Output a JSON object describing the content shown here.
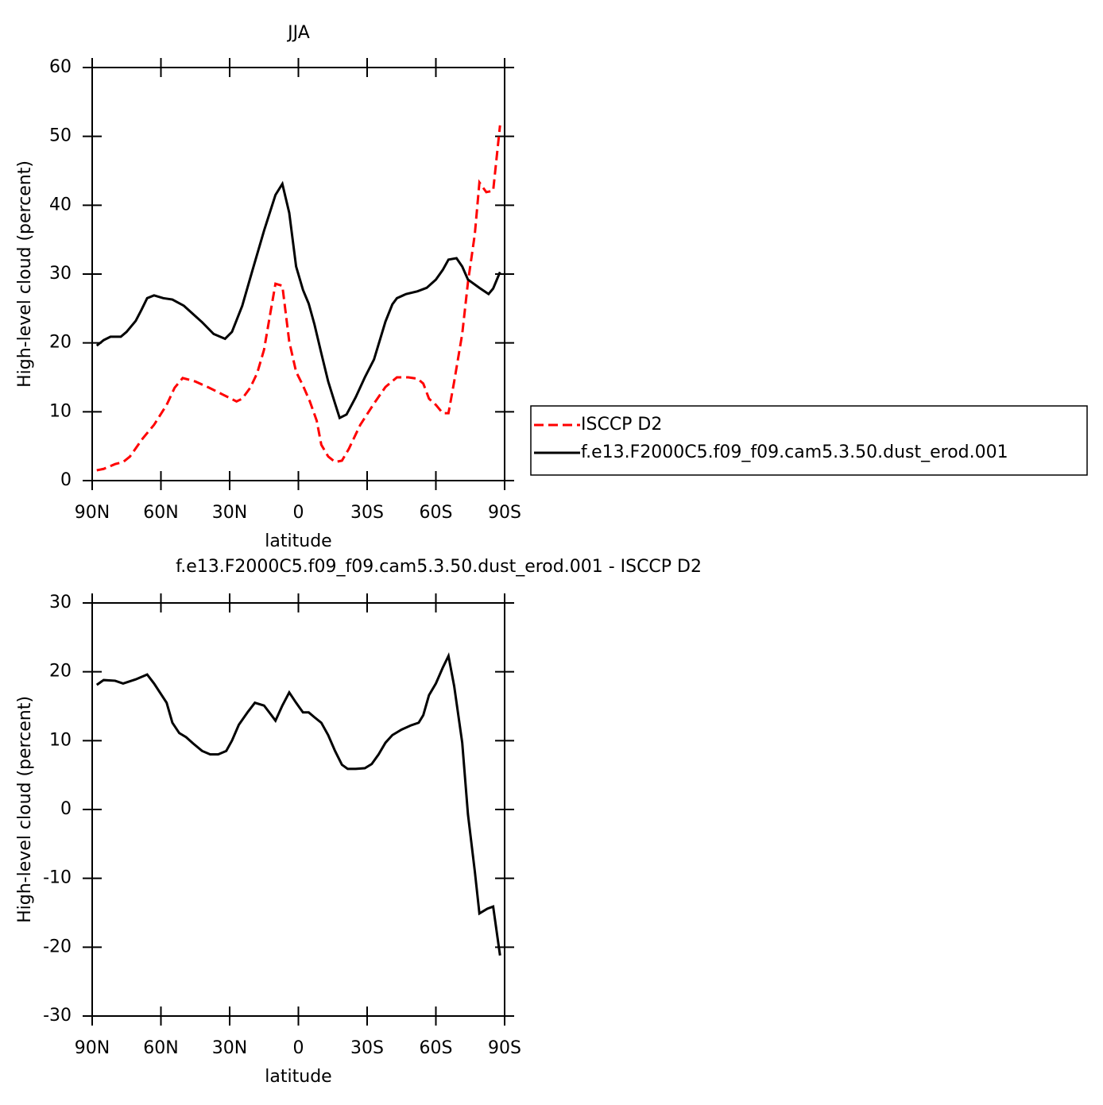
{
  "chart_data": [
    {
      "type": "line",
      "title": "JJA",
      "xlabel": "latitude",
      "ylabel": "High-level cloud (percent)",
      "xlim": [
        90,
        -90
      ],
      "xticks": [
        {
          "value": 90,
          "label": "90N"
        },
        {
          "value": 60,
          "label": "60N"
        },
        {
          "value": 30,
          "label": "30N"
        },
        0,
        {
          "value": -30,
          "label": "30S"
        },
        {
          "value": -60,
          "label": "60S"
        },
        {
          "value": -90,
          "label": "90S"
        }
      ],
      "ylim": [
        0,
        60
      ],
      "yticks": [
        0,
        10,
        20,
        30,
        40,
        50,
        60
      ],
      "legend": "right",
      "series": [
        {
          "name": "ISCCP D2",
          "color": "#ff0000",
          "dash": "dashed",
          "x": [
            88,
            85,
            80,
            76.5,
            73.5,
            68,
            63,
            57.5,
            54,
            50.5,
            45,
            39,
            33,
            27,
            24.5,
            21,
            18,
            15,
            12,
            10,
            7,
            4,
            1,
            -2,
            -5,
            -8,
            -10,
            -13,
            -16,
            -19,
            -22,
            -27,
            -33,
            -38,
            -43,
            -48,
            -52,
            -54.5,
            -57,
            -60,
            -63,
            -65.5,
            -68,
            -71.5,
            -74,
            -77,
            -79,
            -82,
            -85,
            -88
          ],
          "values": [
            1.5,
            1.7,
            2.4,
            2.7,
            3.5,
            6.1,
            8.1,
            11,
            13.5,
            14.9,
            14.4,
            13.5,
            12.5,
            11.5,
            11.9,
            13.5,
            15.6,
            19,
            24.8,
            28.6,
            28.3,
            20.2,
            15.8,
            13.8,
            11.5,
            8.7,
            5.2,
            3.5,
            2.7,
            2.9,
            4.6,
            8.1,
            11.2,
            13.6,
            15,
            15,
            14.8,
            14.1,
            11.9,
            11,
            9.8,
            9.8,
            14.4,
            21.3,
            28.8,
            35.8,
            43.3,
            41.9,
            42.1,
            51.6
          ]
        },
        {
          "name": "f.e13.F2000C5.f09_f09.cam5.3.50.dust_erod.001",
          "color": "#000000",
          "dash": "solid",
          "x": [
            88,
            85,
            82,
            77.5,
            75,
            71,
            68.5,
            66,
            63,
            59,
            55,
            50,
            45,
            42,
            37,
            32,
            29,
            24.5,
            20,
            15,
            10,
            7,
            4,
            1,
            -2,
            -4.5,
            -7,
            -10,
            -13,
            -16,
            -18,
            -21,
            -25,
            -29,
            -33,
            -38,
            -41,
            -43,
            -47,
            -52,
            -56,
            -60,
            -63,
            -65.5,
            -69,
            -71.5,
            -74,
            -79,
            -83,
            -85,
            -88
          ],
          "values": [
            19.6,
            20.4,
            20.9,
            20.9,
            21.6,
            23.2,
            24.8,
            26.5,
            26.9,
            26.5,
            26.3,
            25.4,
            23.9,
            23,
            21.3,
            20.6,
            21.6,
            25.4,
            30.6,
            36.3,
            41.5,
            43.1,
            38.9,
            31.1,
            27.7,
            25.7,
            22.7,
            18.5,
            14.4,
            11.2,
            9.1,
            9.6,
            12.1,
            15,
            17.6,
            23.1,
            25.6,
            26.5,
            27.1,
            27.5,
            28,
            29.2,
            30.6,
            32.1,
            32.3,
            31.1,
            29.2,
            28,
            27.1,
            27.9,
            30.3
          ]
        }
      ]
    },
    {
      "type": "line",
      "title": "f.e13.F2000C5.f09_f09.cam5.3.50.dust_erod.001 - ISCCP D2",
      "xlabel": "latitude",
      "ylabel": "High-level cloud (percent)",
      "xlim": [
        90,
        -90
      ],
      "xticks": [
        {
          "value": 90,
          "label": "90N"
        },
        {
          "value": 60,
          "label": "60N"
        },
        {
          "value": 30,
          "label": "30N"
        },
        0,
        {
          "value": -30,
          "label": "30S"
        },
        {
          "value": -60,
          "label": "60S"
        },
        {
          "value": -90,
          "label": "90S"
        }
      ],
      "ylim": [
        -30,
        30
      ],
      "yticks": [
        -30,
        -20,
        -10,
        0,
        10,
        20,
        30
      ],
      "series": [
        {
          "color": "#000000",
          "dash": "solid",
          "x": [
            88,
            85,
            80,
            76.5,
            71,
            66,
            63,
            57.5,
            55,
            52,
            49,
            46,
            42,
            38.5,
            35,
            31.5,
            29,
            26,
            22,
            19,
            15,
            12,
            10,
            7,
            4,
            1,
            -2,
            -4.5,
            -7,
            -10,
            -13,
            -16,
            -19,
            -21.5,
            -25,
            -29,
            -32,
            -35,
            -38,
            -41,
            -45,
            -49,
            -52.5,
            -54.5,
            -57,
            -60,
            -63,
            -65.5,
            -68,
            -71.5,
            -74,
            -77,
            -79,
            -82.5,
            -85,
            -88
          ],
          "values": [
            18.1,
            18.8,
            18.7,
            18.3,
            18.9,
            19.6,
            18.3,
            15.5,
            12.6,
            11.1,
            10.5,
            9.6,
            8.5,
            8,
            8,
            8.5,
            10,
            12.3,
            14.2,
            15.5,
            15.1,
            13.8,
            12.9,
            15.1,
            17,
            15.5,
            14.1,
            14.1,
            13.4,
            12.6,
            10.8,
            8.5,
            6.5,
            5.9,
            5.9,
            6,
            6.6,
            8,
            9.7,
            10.8,
            11.6,
            12.2,
            12.6,
            13.7,
            16.6,
            18.3,
            20.6,
            22.3,
            17.9,
            9.7,
            -0.7,
            -9,
            -15.1,
            -14.4,
            -14.1,
            -21.2
          ]
        }
      ]
    }
  ]
}
